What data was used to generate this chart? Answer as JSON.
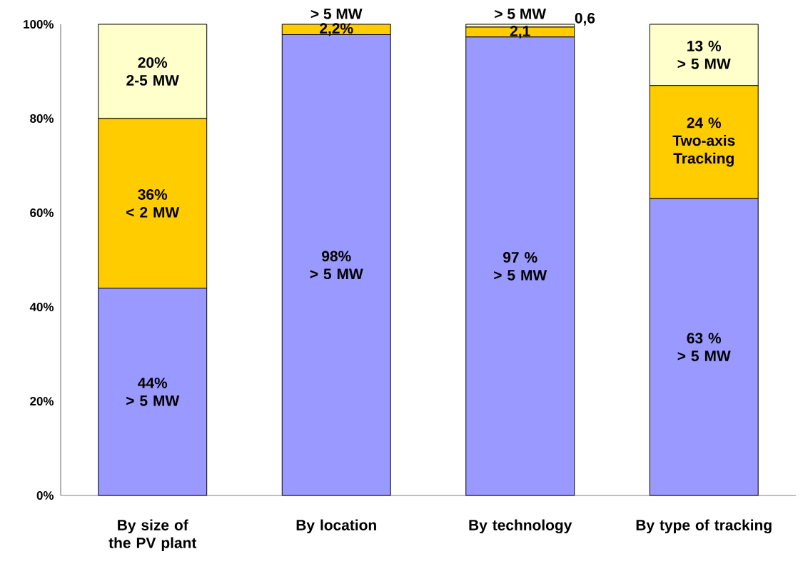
{
  "chart_data": {
    "type": "bar",
    "stacked": true,
    "categories": [
      "By size of the PV plant",
      "By location",
      "By technology",
      "By type of tracking"
    ],
    "series": [
      {
        "color": "#9999ff",
        "values": [
          44,
          97.8,
          97.3,
          63
        ],
        "value_labels": [
          "44% > 5 MW",
          "98% > 5 MW",
          "97 % > 5 MW",
          "63 % > 5 MW"
        ]
      },
      {
        "color": "#ffcc00",
        "values": [
          36,
          2.2,
          2.1,
          24
        ],
        "value_labels": [
          "36% < 2 MW",
          "2,2%",
          "2,1",
          "24 % Two-axis Tracking"
        ]
      },
      {
        "color": "#ffffcc",
        "values": [
          20,
          0,
          0.6,
          13
        ],
        "value_labels": [
          "20% 2-5 MW",
          "> 5 MW",
          "0,6",
          "13 % > 5 MW"
        ]
      }
    ],
    "ylim": [
      0,
      100
    ],
    "yticks": [
      {
        "value": 0,
        "label": "0%"
      },
      {
        "value": 20,
        "label": "20%"
      },
      {
        "value": 40,
        "label": "40%"
      },
      {
        "value": 60,
        "label": "60%"
      },
      {
        "value": 80,
        "label": "80%"
      },
      {
        "value": 100,
        "label": "100%"
      }
    ],
    "annotations": [
      "> 5 MW"
    ],
    "grid": false
  }
}
